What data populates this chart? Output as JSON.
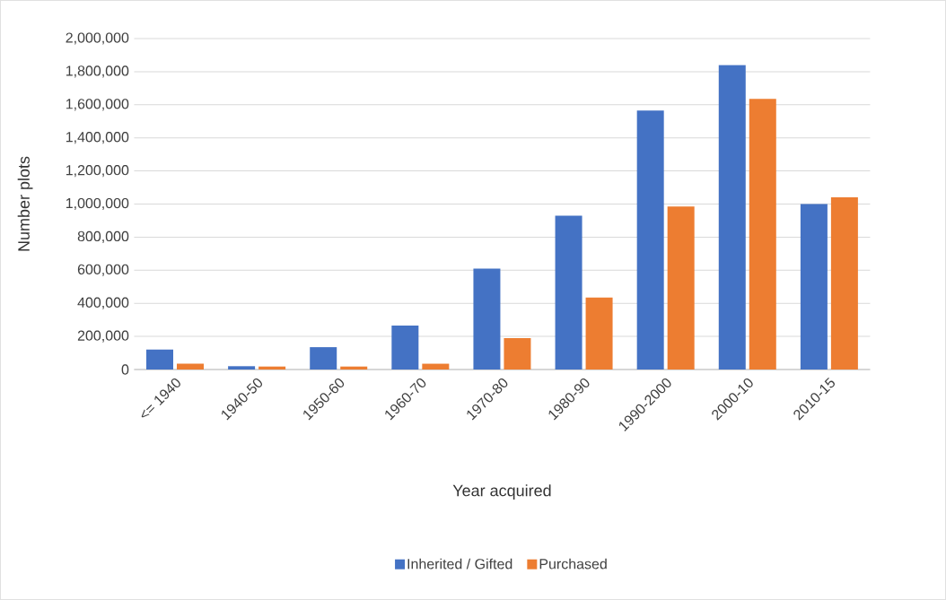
{
  "chart_data": {
    "type": "bar",
    "xlabel": "Year acquired",
    "ylabel": "Number plots",
    "categories": [
      "<= 1940",
      "1940-50",
      "1950-60",
      "1960-70",
      "1970-80",
      "1980-90",
      "1990-2000",
      "2000-10",
      "2010-15"
    ],
    "series": [
      {
        "name": "Inherited / Gifted",
        "color": "#4472c4",
        "values": [
          120000,
          20000,
          135000,
          265000,
          610000,
          930000,
          1565000,
          1840000,
          1000000
        ]
      },
      {
        "name": "Purchased",
        "color": "#ed7d31",
        "values": [
          35000,
          18000,
          18000,
          35000,
          190000,
          435000,
          985000,
          1635000,
          1040000
        ]
      }
    ],
    "ylim": [
      0,
      2000000
    ],
    "yticks": [
      {
        "value": 0,
        "label": "0"
      },
      {
        "value": 200000,
        "label": "200,000"
      },
      {
        "value": 400000,
        "label": "400,000"
      },
      {
        "value": 600000,
        "label": "600,000"
      },
      {
        "value": 800000,
        "label": "800,000"
      },
      {
        "value": 1000000,
        "label": "1,000,000"
      },
      {
        "value": 1200000,
        "label": "1,200,000"
      },
      {
        "value": 1400000,
        "label": "1,400,000"
      },
      {
        "value": 1600000,
        "label": "1,600,000"
      },
      {
        "value": 1800000,
        "label": "1,800,000"
      },
      {
        "value": 2000000,
        "label": "2,000,000"
      }
    ],
    "grid": "y",
    "legend": "bottom"
  }
}
